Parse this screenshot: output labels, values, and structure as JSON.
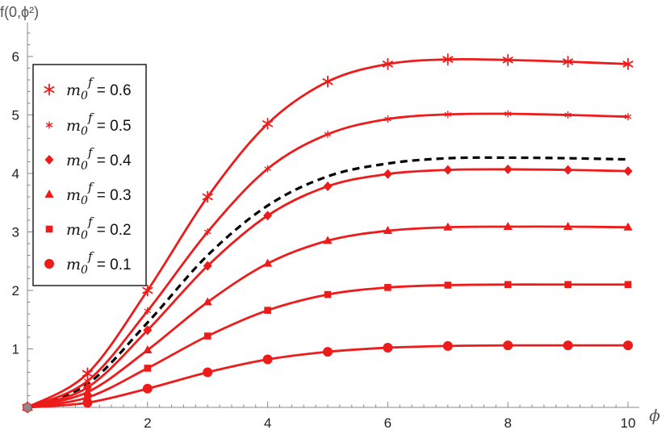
{
  "chart_data": {
    "type": "line",
    "title": "",
    "xlabel": "ϕ",
    "ylabel": "f(0,ϕ²)",
    "xlim": [
      0,
      10
    ],
    "ylim": [
      0,
      6.3
    ],
    "x_ticks": [
      2,
      4,
      6,
      8,
      10
    ],
    "y_ticks": [
      1,
      2,
      3,
      4,
      5,
      6
    ],
    "legend_placement": "top-left",
    "grid": false,
    "colors": {
      "series": "#ee1b1b",
      "dashed": "#000000",
      "axis": "#888888"
    },
    "series": [
      {
        "name": "m0f = 0.6",
        "legend_label": "m",
        "legend_sub": "0",
        "legend_sup": "f",
        "legend_value": "= 0.6",
        "marker": "asterisk-large",
        "x": [
          0,
          1,
          2,
          3,
          4,
          5,
          6,
          7,
          8,
          9,
          10
        ],
        "y": [
          0,
          0.58,
          2.0,
          3.6,
          4.85,
          5.57,
          5.87,
          5.95,
          5.94,
          5.91,
          5.87
        ]
      },
      {
        "name": "m0f = 0.5",
        "legend_label": "m",
        "legend_sub": "0",
        "legend_sup": "f",
        "legend_value": "= 0.5",
        "marker": "asterisk-small",
        "x": [
          0,
          1,
          2,
          3,
          4,
          5,
          6,
          7,
          8,
          9,
          10
        ],
        "y": [
          0,
          0.45,
          1.65,
          3.0,
          4.08,
          4.67,
          4.93,
          5.01,
          5.02,
          5.0,
          4.97
        ]
      },
      {
        "name": "m0f = 0.4",
        "legend_label": "m",
        "legend_sub": "0",
        "legend_sup": "f",
        "legend_value": "= 0.4",
        "marker": "diamond",
        "x": [
          0,
          1,
          2,
          3,
          4,
          5,
          6,
          7,
          8,
          9,
          10
        ],
        "y": [
          0,
          0.34,
          1.32,
          2.42,
          3.28,
          3.78,
          3.99,
          4.06,
          4.07,
          4.06,
          4.04
        ]
      },
      {
        "name": "m0f = 0.3",
        "legend_label": "m",
        "legend_sub": "0",
        "legend_sup": "f",
        "legend_value": "= 0.3",
        "marker": "triangle",
        "x": [
          0,
          1,
          2,
          3,
          4,
          5,
          6,
          7,
          8,
          9,
          10
        ],
        "y": [
          0,
          0.26,
          0.98,
          1.8,
          2.46,
          2.85,
          3.02,
          3.08,
          3.09,
          3.09,
          3.08
        ]
      },
      {
        "name": "m0f = 0.2",
        "legend_label": "m",
        "legend_sub": "0",
        "legend_sup": "f",
        "legend_value": "= 0.2",
        "marker": "square",
        "x": [
          0,
          1,
          2,
          3,
          4,
          5,
          6,
          7,
          8,
          9,
          10
        ],
        "y": [
          0,
          0.17,
          0.67,
          1.22,
          1.66,
          1.93,
          2.05,
          2.09,
          2.1,
          2.1,
          2.1
        ]
      },
      {
        "name": "m0f = 0.1",
        "legend_label": "m",
        "legend_sub": "0",
        "legend_sup": "f",
        "legend_value": "= 0.1",
        "marker": "circle",
        "x": [
          0,
          1,
          2,
          3,
          4,
          5,
          6,
          7,
          8,
          9,
          10
        ],
        "y": [
          0,
          0.08,
          0.32,
          0.6,
          0.82,
          0.95,
          1.02,
          1.05,
          1.06,
          1.06,
          1.06
        ]
      }
    ],
    "dashed_curve": {
      "x": [
        0,
        1,
        2,
        3,
        4,
        5,
        6,
        7,
        8,
        9,
        10
      ],
      "y": [
        0,
        0.4,
        1.45,
        2.6,
        3.45,
        3.95,
        4.17,
        4.26,
        4.27,
        4.26,
        4.24
      ]
    }
  }
}
